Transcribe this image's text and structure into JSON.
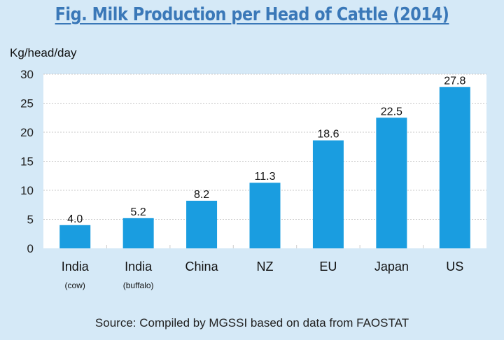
{
  "chart_data": {
    "type": "bar",
    "title": "Fig.  Milk Production per Head of Cattle (2014)",
    "ylabel": "Kg/head/day",
    "xlabel": "",
    "categories": [
      {
        "label": "India",
        "sublabel": "(cow)"
      },
      {
        "label": "India",
        "sublabel": "(buffalo)"
      },
      {
        "label": "China",
        "sublabel": ""
      },
      {
        "label": "NZ",
        "sublabel": ""
      },
      {
        "label": "EU",
        "sublabel": ""
      },
      {
        "label": "Japan",
        "sublabel": ""
      },
      {
        "label": "US",
        "sublabel": ""
      }
    ],
    "values": [
      4.0,
      5.2,
      8.2,
      11.3,
      18.6,
      22.5,
      27.8
    ],
    "data_labels": [
      "4.0",
      "5.2",
      "8.2",
      "11.3",
      "18.6",
      "22.5",
      "27.8"
    ],
    "ylim": [
      0,
      30
    ],
    "yticks": [
      0,
      5,
      10,
      15,
      20,
      25,
      30
    ],
    "grid": true,
    "legend": "none",
    "bar_color": "#1a9de0",
    "source": "Source: Compiled by MGSSI based on data from FAOSTAT"
  }
}
